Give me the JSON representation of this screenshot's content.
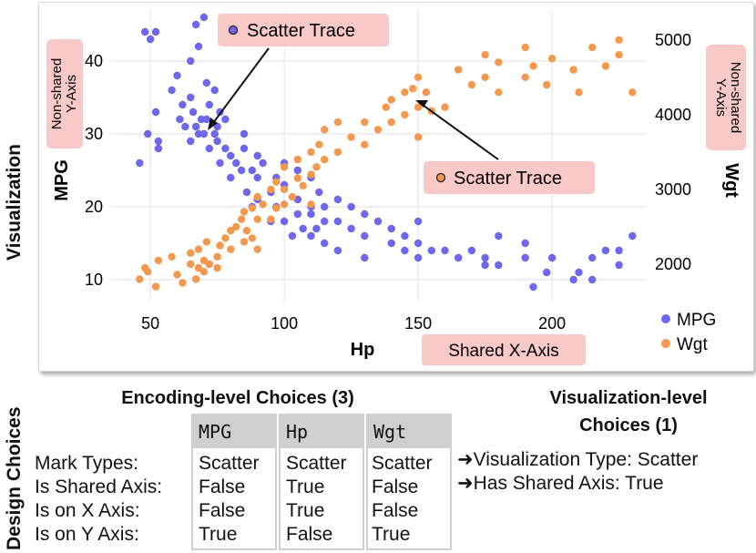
{
  "side_labels": {
    "visualization": "Visualization",
    "design_choices": "Design Choices"
  },
  "chart_data": {
    "type": "scatter",
    "xlabel": "Hp",
    "ylabel_left": "MPG",
    "ylabel_right": "Wgt",
    "xlim": [
      35,
      235
    ],
    "ylim_left": [
      7,
      47
    ],
    "ylim_right": [
      1500,
      5400
    ],
    "x_ticks": [
      50,
      100,
      150,
      200
    ],
    "y_left_ticks": [
      10,
      20,
      30,
      40
    ],
    "y_right_ticks": [
      2000,
      3000,
      4000,
      5000
    ],
    "grid": true,
    "legend_position": "bottom-right",
    "series": [
      {
        "name": "MPG",
        "color": "#6e66ee",
        "axis": "left",
        "points": [
          [
            46,
            26
          ],
          [
            48,
            44
          ],
          [
            49,
            30
          ],
          [
            50,
            43
          ],
          [
            52,
            33
          ],
          [
            52,
            44
          ],
          [
            53,
            29
          ],
          [
            53,
            28
          ],
          [
            58,
            36
          ],
          [
            60,
            38
          ],
          [
            61,
            32
          ],
          [
            62,
            34
          ],
          [
            63,
            31
          ],
          [
            65,
            29
          ],
          [
            65,
            35
          ],
          [
            65,
            40
          ],
          [
            66,
            33
          ],
          [
            67,
            31
          ],
          [
            67,
            45
          ],
          [
            68,
            30
          ],
          [
            68,
            42
          ],
          [
            69,
            32
          ],
          [
            70,
            30
          ],
          [
            70,
            46
          ],
          [
            71,
            32
          ],
          [
            71,
            37
          ],
          [
            72,
            28
          ],
          [
            72,
            34
          ],
          [
            74,
            30
          ],
          [
            74,
            36
          ],
          [
            75,
            31
          ],
          [
            75,
            29
          ],
          [
            76,
            26
          ],
          [
            76,
            33
          ],
          [
            78,
            28
          ],
          [
            78,
            32
          ],
          [
            80,
            24
          ],
          [
            80,
            27
          ],
          [
            82,
            26
          ],
          [
            84,
            25
          ],
          [
            85,
            28
          ],
          [
            85,
            30
          ],
          [
            86,
            22
          ],
          [
            88,
            25
          ],
          [
            88,
            20
          ],
          [
            90,
            24
          ],
          [
            90,
            21
          ],
          [
            90,
            27
          ],
          [
            92,
            26
          ],
          [
            95,
            22
          ],
          [
            95,
            18
          ],
          [
            97,
            20
          ],
          [
            97,
            24
          ],
          [
            100,
            18
          ],
          [
            100,
            23
          ],
          [
            100,
            26
          ],
          [
            103,
            16
          ],
          [
            105,
            21
          ],
          [
            105,
            19
          ],
          [
            105,
            25
          ],
          [
            107,
            17
          ],
          [
            110,
            16
          ],
          [
            110,
            19
          ],
          [
            110,
            20
          ],
          [
            110,
            24
          ],
          [
            112,
            17
          ],
          [
            113,
            22
          ],
          [
            115,
            18
          ],
          [
            115,
            20
          ],
          [
            115,
            15
          ],
          [
            120,
            18
          ],
          [
            120,
            21
          ],
          [
            120,
            14
          ],
          [
            125,
            17
          ],
          [
            125,
            20
          ],
          [
            130,
            16
          ],
          [
            130,
            19
          ],
          [
            130,
            13
          ],
          [
            135,
            18
          ],
          [
            140,
            17
          ],
          [
            140,
            15
          ],
          [
            145,
            14
          ],
          [
            145,
            16
          ],
          [
            150,
            15
          ],
          [
            150,
            18
          ],
          [
            150,
            13
          ],
          [
            155,
            14
          ],
          [
            160,
            14
          ],
          [
            165,
            13
          ],
          [
            170,
            14
          ],
          [
            175,
            12
          ],
          [
            175,
            13
          ],
          [
            180,
            16
          ],
          [
            180,
            12
          ],
          [
            190,
            13
          ],
          [
            190,
            15
          ],
          [
            193,
            9
          ],
          [
            198,
            11
          ],
          [
            200,
            13
          ],
          [
            208,
            10
          ],
          [
            210,
            11
          ],
          [
            215,
            10
          ],
          [
            215,
            13
          ],
          [
            220,
            14
          ],
          [
            225,
            12
          ],
          [
            225,
            14
          ],
          [
            230,
            16
          ]
        ]
      },
      {
        "name": "Wgt",
        "color": "#f3994e",
        "axis": "right",
        "points": [
          [
            46,
            1800
          ],
          [
            48,
            1950
          ],
          [
            49,
            1900
          ],
          [
            52,
            1700
          ],
          [
            53,
            2050
          ],
          [
            58,
            2100
          ],
          [
            60,
            1860
          ],
          [
            62,
            1750
          ],
          [
            65,
            2000
          ],
          [
            65,
            2150
          ],
          [
            67,
            1800
          ],
          [
            68,
            1950
          ],
          [
            68,
            2200
          ],
          [
            70,
            2050
          ],
          [
            70,
            1900
          ],
          [
            71,
            2300
          ],
          [
            72,
            2000
          ],
          [
            75,
            2100
          ],
          [
            75,
            1950
          ],
          [
            76,
            2250
          ],
          [
            78,
            2350
          ],
          [
            80,
            2200
          ],
          [
            80,
            2450
          ],
          [
            82,
            2500
          ],
          [
            84,
            2600
          ],
          [
            85,
            2300
          ],
          [
            85,
            2700
          ],
          [
            86,
            2450
          ],
          [
            88,
            2750
          ],
          [
            88,
            2350
          ],
          [
            90,
            2600
          ],
          [
            90,
            2900
          ],
          [
            90,
            2200
          ],
          [
            92,
            2800
          ],
          [
            95,
            3000
          ],
          [
            95,
            2600
          ],
          [
            97,
            2750
          ],
          [
            97,
            3100
          ],
          [
            100,
            2800
          ],
          [
            100,
            3300
          ],
          [
            100,
            3000
          ],
          [
            103,
            2900
          ],
          [
            105,
            3150
          ],
          [
            105,
            3400
          ],
          [
            107,
            3050
          ],
          [
            110,
            3200
          ],
          [
            110,
            3500
          ],
          [
            110,
            2800
          ],
          [
            112,
            3300
          ],
          [
            113,
            3600
          ],
          [
            115,
            3400
          ],
          [
            115,
            3800
          ],
          [
            120,
            3500
          ],
          [
            120,
            3900
          ],
          [
            125,
            3700
          ],
          [
            130,
            3900
          ],
          [
            130,
            3600
          ],
          [
            135,
            3800
          ],
          [
            138,
            4100
          ],
          [
            140,
            3900
          ],
          [
            140,
            4200
          ],
          [
            145,
            4300
          ],
          [
            145,
            4000
          ],
          [
            148,
            4350
          ],
          [
            150,
            4100
          ],
          [
            150,
            4500
          ],
          [
            150,
            3700
          ],
          [
            153,
            4300
          ],
          [
            155,
            4050
          ],
          [
            160,
            4100
          ],
          [
            165,
            4600
          ],
          [
            170,
            4400
          ],
          [
            175,
            4800
          ],
          [
            175,
            4500
          ],
          [
            180,
            4700
          ],
          [
            180,
            4300
          ],
          [
            190,
            4500
          ],
          [
            190,
            4900
          ],
          [
            193,
            4650
          ],
          [
            198,
            4400
          ],
          [
            200,
            4750
          ],
          [
            208,
            4600
          ],
          [
            210,
            4300
          ],
          [
            215,
            4900
          ],
          [
            220,
            4650
          ],
          [
            225,
            4800
          ],
          [
            225,
            5000
          ],
          [
            230,
            4300
          ]
        ]
      }
    ],
    "annotations": {
      "scatter_trace_1": "Scatter Trace",
      "scatter_trace_2": "Scatter Trace",
      "non_shared_left": [
        "Non-shared",
        "Y-Axis"
      ],
      "non_shared_right": [
        "Non-shared",
        "Y-Axis"
      ],
      "shared_x": "Shared X-Axis"
    }
  },
  "design_choices": {
    "encoding_title": "Encoding-level Choices (3)",
    "viz_title_line1": "Visualization-level",
    "viz_title_line2": "Choices (1)",
    "row_labels": [
      "Mark Types:",
      "Is Shared Axis:",
      "Is on X Axis:",
      "Is on Y Axis:"
    ],
    "columns": [
      {
        "header": "MPG",
        "values": [
          "Scatter",
          "False",
          "False",
          "True"
        ]
      },
      {
        "header": "Hp",
        "values": [
          "Scatter",
          "True",
          "True",
          "False"
        ]
      },
      {
        "header": "Wgt",
        "values": [
          "Scatter",
          "False",
          "False",
          "True"
        ]
      }
    ],
    "viz_choices": [
      "Visualization Type: Scatter",
      "Has Shared Axis: True"
    ]
  },
  "colors": {
    "mpg": "#6e66ee",
    "wgt": "#f3994e",
    "annotation_bg": "#f8c9c7",
    "table_header": "#cfcfcf"
  }
}
